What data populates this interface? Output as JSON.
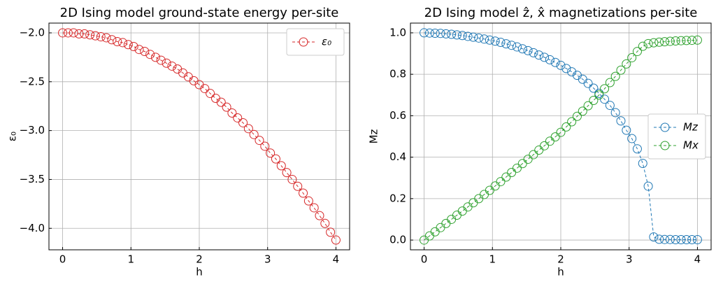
{
  "chart_data": [
    {
      "type": "line",
      "title": "2D Ising model ground-state energy per-site",
      "xlabel": "h",
      "ylabel": "ε₀",
      "x": [
        0,
        0.08,
        0.16,
        0.24,
        0.32,
        0.4,
        0.48,
        0.56,
        0.64,
        0.72,
        0.8,
        0.88,
        0.96,
        1.04,
        1.12,
        1.2,
        1.28,
        1.36,
        1.44,
        1.52,
        1.6,
        1.68,
        1.76,
        1.84,
        1.92,
        2,
        2.08,
        2.16,
        2.24,
        2.32,
        2.4,
        2.48,
        2.56,
        2.64,
        2.72,
        2.8,
        2.88,
        2.96,
        3.04,
        3.12,
        3.2,
        3.28,
        3.36,
        3.44,
        3.52,
        3.6,
        3.68,
        3.76,
        3.84,
        3.92,
        4
      ],
      "series": [
        {
          "name": "ε₀",
          "color": "#d62728",
          "values": [
            -2,
            -2,
            -2,
            -2.01,
            -2.01,
            -2.02,
            -2.03,
            -2.04,
            -2.05,
            -2.07,
            -2.09,
            -2.1,
            -2.12,
            -2.14,
            -2.17,
            -2.19,
            -2.22,
            -2.25,
            -2.28,
            -2.31,
            -2.34,
            -2.37,
            -2.41,
            -2.45,
            -2.49,
            -2.53,
            -2.57,
            -2.62,
            -2.67,
            -2.71,
            -2.76,
            -2.82,
            -2.87,
            -2.92,
            -2.98,
            -3.04,
            -3.1,
            -3.16,
            -3.23,
            -3.29,
            -3.36,
            -3.43,
            -3.5,
            -3.57,
            -3.64,
            -3.72,
            -3.79,
            -3.87,
            -3.95,
            -4.04,
            -4.12
          ]
        }
      ],
      "xlim": [
        -0.2,
        4.2
      ],
      "xticks": [
        0,
        1,
        2,
        3,
        4
      ],
      "ylim": [
        -4.22,
        -1.9
      ],
      "yticks": [
        {
          "value": -2,
          "label": "−2.0"
        },
        {
          "value": -2.5,
          "label": "−2.5"
        },
        {
          "value": -3,
          "label": "−3.0"
        },
        {
          "value": -3.5,
          "label": "−3.5"
        },
        {
          "value": -4,
          "label": "−4.0"
        }
      ],
      "grid": true,
      "legend": "upper-right"
    },
    {
      "type": "line",
      "title": "2D Ising model ẑ, x̂ magnetizations per-site",
      "xlabel": "h",
      "ylabel": "Mz",
      "x": [
        0,
        0.08,
        0.16,
        0.24,
        0.32,
        0.4,
        0.48,
        0.56,
        0.64,
        0.72,
        0.8,
        0.88,
        0.96,
        1.04,
        1.12,
        1.2,
        1.28,
        1.36,
        1.44,
        1.52,
        1.6,
        1.68,
        1.76,
        1.84,
        1.92,
        2,
        2.08,
        2.16,
        2.24,
        2.32,
        2.4,
        2.48,
        2.56,
        2.64,
        2.72,
        2.8,
        2.88,
        2.96,
        3.04,
        3.12,
        3.2,
        3.28,
        3.36,
        3.44,
        3.52,
        3.6,
        3.68,
        3.76,
        3.84,
        3.92,
        4
      ],
      "series": [
        {
          "name": "Mz",
          "color": "#1f77b4",
          "values": [
            1,
            0.999,
            0.998,
            0.997,
            0.995,
            0.993,
            0.99,
            0.987,
            0.983,
            0.979,
            0.975,
            0.97,
            0.965,
            0.96,
            0.954,
            0.947,
            0.94,
            0.932,
            0.923,
            0.914,
            0.904,
            0.893,
            0.882,
            0.87,
            0.857,
            0.843,
            0.828,
            0.812,
            0.795,
            0.776,
            0.756,
            0.733,
            0.708,
            0.68,
            0.65,
            0.615,
            0.575,
            0.53,
            0.49,
            0.44,
            0.37,
            0.26,
            0.015,
            0.004,
            0.003,
            0.003,
            0.002,
            0.002,
            0.002,
            0.002,
            0.002
          ]
        },
        {
          "name": "Mx",
          "color": "#2ca02c",
          "values": [
            0,
            0.02,
            0.04,
            0.06,
            0.08,
            0.1,
            0.12,
            0.14,
            0.16,
            0.18,
            0.2,
            0.22,
            0.24,
            0.261,
            0.282,
            0.304,
            0.326,
            0.347,
            0.369,
            0.39,
            0.412,
            0.434,
            0.455,
            0.477,
            0.498,
            0.52,
            0.546,
            0.571,
            0.597,
            0.622,
            0.648,
            0.674,
            0.7,
            0.73,
            0.76,
            0.79,
            0.82,
            0.85,
            0.88,
            0.91,
            0.935,
            0.948,
            0.952,
            0.955,
            0.957,
            0.959,
            0.961,
            0.962,
            0.963,
            0.964,
            0.965
          ]
        }
      ],
      "xlim": [
        -0.2,
        4.2
      ],
      "xticks": [
        0,
        1,
        2,
        3,
        4
      ],
      "ylim": [
        -0.047,
        1.047
      ],
      "yticks": [
        {
          "value": 0,
          "label": "0.0"
        },
        {
          "value": 0.2,
          "label": "0.2"
        },
        {
          "value": 0.4,
          "label": "0.4"
        },
        {
          "value": 0.6,
          "label": "0.6"
        },
        {
          "value": 0.8,
          "label": "0.8"
        },
        {
          "value": 1,
          "label": "1.0"
        }
      ],
      "grid": true,
      "legend": "center-right"
    }
  ]
}
